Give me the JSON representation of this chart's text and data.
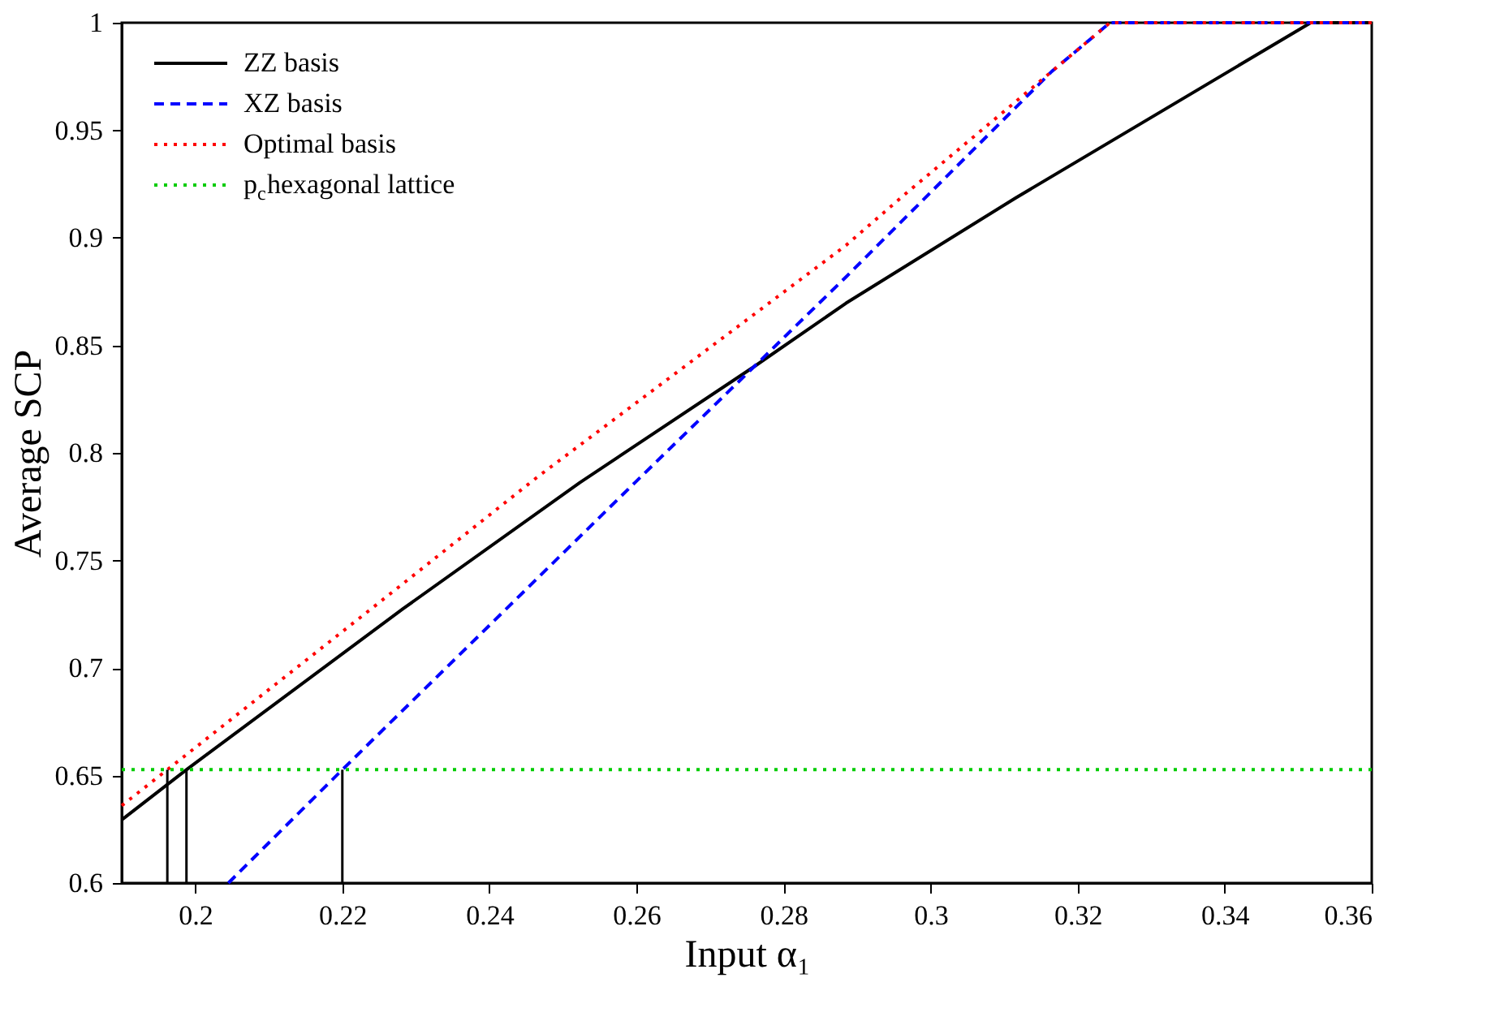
{
  "chart_data": {
    "type": "line",
    "xlabel": "Input α₁",
    "ylabel": "Average SCP",
    "xlim": [
      0.19,
      0.36
    ],
    "xticks": [
      0.2,
      0.22,
      0.24,
      0.26,
      0.28,
      0.3,
      0.32,
      0.34,
      0.36
    ],
    "ylim": [
      0.6,
      1
    ],
    "yticks": [
      0.6,
      0.65,
      0.7,
      0.75,
      0.8,
      0.85,
      0.9,
      0.95,
      1
    ],
    "grid": false,
    "legend": "top left",
    "marker": "none",
    "series": [
      {
        "name": "ZZ basis",
        "color": "#000000",
        "line_style": "solid",
        "x": [
          0.19,
          0.1988,
          0.2282,
          0.2523,
          0.276,
          0.2885,
          0.3116,
          0.3517,
          0.36
        ],
        "values": [
          0.6294,
          0.6527,
          0.7274,
          0.7862,
          0.8401,
          0.8696,
          0.9186,
          1,
          1
        ]
      },
      {
        "name": "XZ basis",
        "color": "#0000ff",
        "line_style": "dashed",
        "x": [
          0.2045,
          0.22,
          0.2598,
          0.276,
          0.2885,
          0.3165,
          0.3244,
          0.36
        ],
        "values": [
          0.6,
          0.6527,
          0.7862,
          0.8401,
          0.8818,
          0.9774,
          1,
          1
        ]
      },
      {
        "name": "Optimal basis",
        "color": "#ff0000",
        "line_style": "dotted",
        "x": [
          0.19,
          0.1962,
          0.2239,
          0.2465,
          0.2885,
          0.2964,
          0.3165,
          0.3244,
          0.36
        ],
        "values": [
          0.636,
          0.6527,
          0.7274,
          0.7887,
          0.8965,
          0.9199,
          0.9774,
          1,
          1
        ]
      },
      {
        "name": "p$_{c}$hexagonal lattice",
        "color": "#00cc00",
        "line_style": "dotted",
        "x": [
          0.19,
          0.36
        ],
        "values": [
          0.6527,
          0.6527
        ]
      },
      {
        "color": "#000000",
        "line_style": "solid",
        "x": [
          0.1962,
          0.1962
        ],
        "values": [
          0.6,
          0.6527
        ]
      },
      {
        "color": "#000000",
        "line_style": "solid",
        "x": [
          0.1988,
          0.1988
        ],
        "values": [
          0.6,
          0.6527
        ]
      },
      {
        "color": "#000000",
        "line_style": "solid",
        "x": [
          0.22,
          0.22
        ],
        "values": [
          0.6,
          0.6527
        ]
      }
    ]
  }
}
